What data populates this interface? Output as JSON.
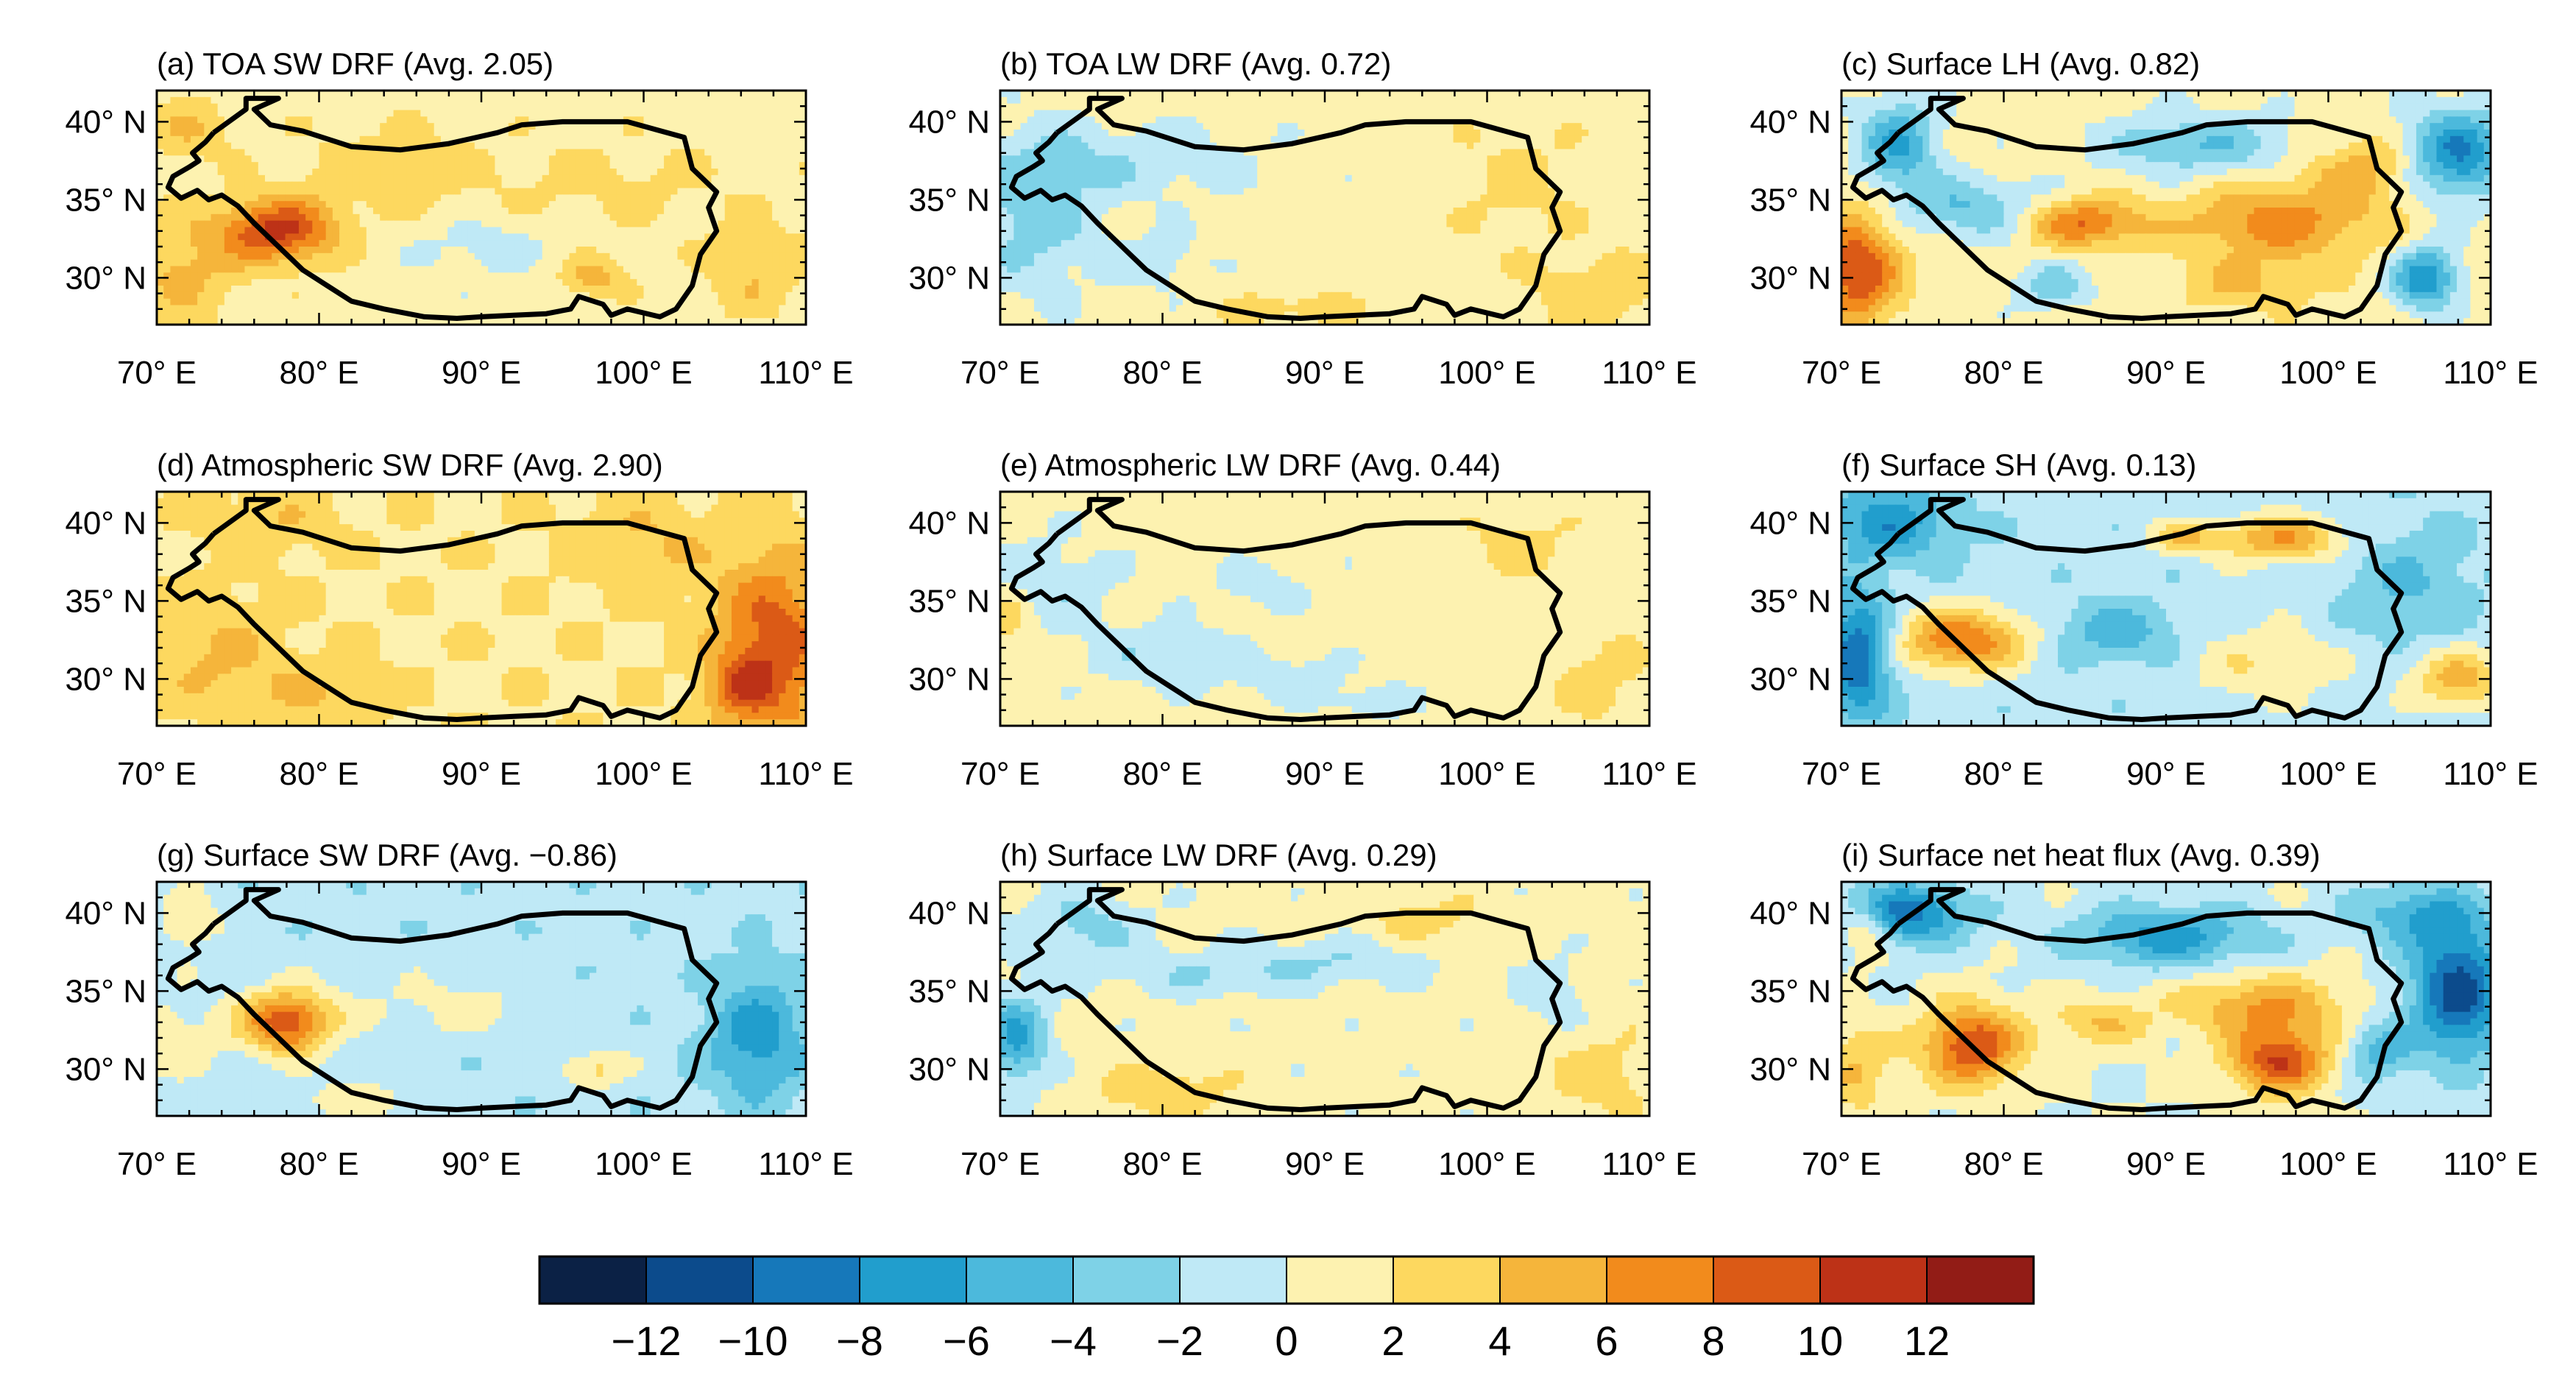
{
  "figure": {
    "lat_range": [
      27,
      42
    ],
    "lon_range": [
      70,
      110
    ],
    "lat_ticks": [
      30,
      35,
      40
    ],
    "lon_ticks": [
      70,
      80,
      90,
      100,
      110
    ],
    "lat_tick_labels": [
      "30° N",
      "35° N",
      "40° N"
    ],
    "lon_tick_labels": [
      "70° E",
      "80° E",
      "90° E",
      "100° E",
      "110° E"
    ]
  },
  "panels": [
    {
      "id": "a",
      "title": "(a) TOA SW DRF (Avg. 2.05)",
      "base": 1.0,
      "features": [
        [
          77.5,
          33.0,
          3.5,
          2.0,
          9.5
        ],
        [
          71.5,
          30.5,
          3.5,
          3.5,
          3.5
        ],
        [
          72.0,
          39.5,
          2.5,
          2.0,
          3.0
        ],
        [
          84.0,
          37.0,
          6.0,
          3.0,
          2.0
        ],
        [
          90.0,
          32.0,
          4.0,
          2.0,
          -2.0
        ],
        [
          97.0,
          30.0,
          2.0,
          1.2,
          4.0
        ],
        [
          98.0,
          36.0,
          8.0,
          3.0,
          1.5
        ],
        [
          107.0,
          30.5,
          3.0,
          3.0,
          3.0
        ]
      ]
    },
    {
      "id": "b",
      "title": "(b) TOA LW DRF (Avg. 0.72)",
      "base": 1.0,
      "features": [
        [
          72.0,
          34.0,
          4.0,
          5.0,
          -4.0
        ],
        [
          78.0,
          37.5,
          8.0,
          2.5,
          -2.5
        ],
        [
          80.0,
          31.0,
          3.0,
          2.0,
          -2.0
        ],
        [
          102.0,
          36.0,
          4.0,
          4.0,
          1.5
        ],
        [
          107.0,
          29.0,
          4.0,
          2.5,
          2.5
        ],
        [
          88.0,
          28.0,
          4.0,
          1.2,
          2.0
        ]
      ]
    },
    {
      "id": "c",
      "title": "(c) Surface LH (Avg. 0.82)",
      "base": 1.0,
      "features": [
        [
          71.0,
          30.5,
          2.5,
          3.5,
          9.0
        ],
        [
          73.5,
          38.5,
          2.5,
          3.0,
          -7.0
        ],
        [
          78.0,
          34.5,
          4.0,
          2.0,
          -5.0
        ],
        [
          85.0,
          33.5,
          3.5,
          1.5,
          7.0
        ],
        [
          97.0,
          33.5,
          6.0,
          2.5,
          6.0
        ],
        [
          92.0,
          38.5,
          6.0,
          2.0,
          -5.0
        ],
        [
          108.0,
          38.0,
          3.0,
          3.0,
          -9.0
        ],
        [
          106.0,
          30.0,
          2.0,
          2.0,
          -9.0
        ],
        [
          102.0,
          37.0,
          3.0,
          2.0,
          4.0
        ],
        [
          83.0,
          29.5,
          2.5,
          1.5,
          -4.0
        ],
        [
          95.0,
          29.5,
          4.0,
          1.5,
          3.0
        ]
      ]
    },
    {
      "id": "d",
      "title": "(d) Atmospheric SW DRF (Avg. 2.90)",
      "base": 1.8,
      "features": [
        [
          108.0,
          32.0,
          3.5,
          6.0,
          7.5
        ],
        [
          106.0,
          29.5,
          2.0,
          2.0,
          4.0
        ],
        [
          74.0,
          31.5,
          4.0,
          4.0,
          2.5
        ],
        [
          80.0,
          29.0,
          4.0,
          2.0,
          2.0
        ],
        [
          100.0,
          38.5,
          4.0,
          3.0,
          2.5
        ],
        [
          77.0,
          40.0,
          4.0,
          2.0,
          2.0
        ]
      ]
    },
    {
      "id": "e",
      "title": "(e) Atmospheric LW DRF (Avg. 0.44)",
      "base": 0.9,
      "features": [
        [
          73.0,
          36.0,
          4.0,
          3.0,
          -2.5
        ],
        [
          80.0,
          31.5,
          5.0,
          2.0,
          -2.5
        ],
        [
          88.0,
          30.0,
          4.0,
          1.5,
          -2.0
        ],
        [
          93.0,
          28.5,
          3.0,
          1.0,
          -2.0
        ],
        [
          86.0,
          36.0,
          3.0,
          1.5,
          -2.0
        ],
        [
          107.0,
          30.0,
          3.0,
          3.0,
          2.0
        ],
        [
          70.5,
          34.0,
          1.5,
          2.0,
          2.5
        ],
        [
          102.0,
          38.5,
          3.0,
          2.0,
          2.0
        ]
      ]
    },
    {
      "id": "f",
      "title": "(f) Surface SH (Avg. 0.13)",
      "base": -1.2,
      "features": [
        [
          71.0,
          31.5,
          2.0,
          4.0,
          -9.0
        ],
        [
          77.5,
          32.5,
          4.0,
          2.0,
          9.0
        ],
        [
          73.0,
          40.0,
          4.0,
          2.5,
          -6.0
        ],
        [
          97.0,
          39.0,
          4.0,
          1.5,
          7.0
        ],
        [
          91.0,
          39.0,
          2.0,
          1.0,
          5.0
        ],
        [
          87.0,
          33.0,
          4.0,
          2.0,
          -4.0
        ],
        [
          108.0,
          30.0,
          3.0,
          2.0,
          6.0
        ],
        [
          96.0,
          31.0,
          5.0,
          2.5,
          3.0
        ],
        [
          105.0,
          36.0,
          4.0,
          4.0,
          -3.0
        ]
      ]
    },
    {
      "id": "g",
      "title": "(g) Surface SW DRF (Avg. −0.86)",
      "base": -1.3,
      "features": [
        [
          78.0,
          33.0,
          2.8,
          2.0,
          11.0
        ],
        [
          72.0,
          39.5,
          2.0,
          2.0,
          3.0
        ],
        [
          107.0,
          32.0,
          3.0,
          4.0,
          -6.0
        ],
        [
          97.0,
          30.0,
          2.0,
          1.2,
          4.0
        ],
        [
          88.0,
          34.0,
          6.0,
          2.0,
          2.0
        ],
        [
          71.0,
          32.0,
          3.0,
          3.0,
          2.5
        ],
        [
          82.0,
          28.0,
          4.0,
          1.2,
          2.5
        ]
      ]
    },
    {
      "id": "h",
      "title": "(h) Surface LW DRF (Avg. 0.29)",
      "base": 0.8,
      "features": [
        [
          71.0,
          32.0,
          2.0,
          3.0,
          -7.0
        ],
        [
          75.0,
          39.0,
          4.0,
          2.5,
          -3.5
        ],
        [
          83.0,
          36.0,
          6.0,
          1.5,
          -2.5
        ],
        [
          91.0,
          37.0,
          6.0,
          1.5,
          -2.5
        ],
        [
          80.0,
          28.5,
          4.0,
          1.5,
          3.0
        ],
        [
          107.0,
          29.5,
          3.0,
          2.5,
          2.5
        ],
        [
          104.0,
          35.0,
          2.0,
          2.0,
          -2.5
        ],
        [
          96.0,
          39.5,
          4.0,
          1.5,
          2.0
        ]
      ]
    },
    {
      "id": "i",
      "title": "(i) Surface net heat flux (Avg. 0.39)",
      "base": 0.0,
      "features": [
        [
          78.0,
          31.5,
          3.0,
          2.5,
          10.0
        ],
        [
          97.0,
          30.5,
          3.0,
          2.0,
          10.0
        ],
        [
          96.0,
          34.0,
          5.0,
          2.0,
          6.0
        ],
        [
          108.0,
          35.0,
          3.0,
          4.5,
          -11.0
        ],
        [
          74.0,
          40.0,
          4.0,
          2.0,
          -9.0
        ],
        [
          90.0,
          38.5,
          6.0,
          2.0,
          -7.0
        ],
        [
          71.0,
          30.0,
          2.0,
          3.0,
          4.0
        ],
        [
          86.0,
          33.0,
          3.0,
          1.5,
          4.0
        ],
        [
          103.0,
          31.0,
          2.0,
          2.0,
          -5.0
        ],
        [
          105.0,
          40.0,
          4.0,
          2.0,
          -5.0
        ],
        [
          71.5,
          39.0,
          1.5,
          1.5,
          5.0
        ]
      ]
    }
  ],
  "colorbar": {
    "levels": [
      -12,
      -10,
      -8,
      -6,
      -4,
      -2,
      0,
      2,
      4,
      6,
      8,
      10,
      12
    ],
    "tick_labels": [
      "−12",
      "−10",
      "−8",
      "−6",
      "−4",
      "−2",
      "0",
      "2",
      "4",
      "6",
      "8",
      "10",
      "12"
    ],
    "colors": [
      "#0b2145",
      "#0c4b8c",
      "#1678ba",
      "#219ecd",
      "#4cb9dc",
      "#7ed2e7",
      "#bfe9f6",
      "#fdf2b0",
      "#fdd85f",
      "#f5b53b",
      "#f28b1c",
      "#db5a16",
      "#bd3217",
      "#921c16"
    ]
  },
  "plateau_outline_lonlat": [
    [
      73.5,
      39.3
    ],
    [
      75.5,
      40.8
    ],
    [
      75.5,
      41.5
    ],
    [
      77.5,
      41.5
    ],
    [
      76.0,
      40.8
    ],
    [
      77.0,
      39.8
    ],
    [
      79.0,
      39.4
    ],
    [
      82.0,
      38.4
    ],
    [
      85.0,
      38.2
    ],
    [
      88.0,
      38.6
    ],
    [
      91.0,
      39.3
    ],
    [
      92.5,
      39.8
    ],
    [
      95.0,
      40.0
    ],
    [
      99.0,
      40.0
    ],
    [
      102.5,
      39.0
    ],
    [
      103.0,
      37.0
    ],
    [
      104.5,
      35.5
    ],
    [
      104.0,
      34.5
    ],
    [
      104.5,
      33.0
    ],
    [
      103.5,
      31.5
    ],
    [
      103.0,
      29.5
    ],
    [
      102.0,
      28.0
    ],
    [
      101.0,
      27.5
    ],
    [
      99.0,
      28.0
    ],
    [
      98.0,
      27.6
    ],
    [
      97.5,
      28.3
    ],
    [
      96.0,
      28.8
    ],
    [
      95.5,
      28.0
    ],
    [
      94.0,
      27.7
    ],
    [
      92.0,
      27.6
    ],
    [
      90.0,
      27.5
    ],
    [
      88.5,
      27.4
    ],
    [
      86.5,
      27.5
    ],
    [
      84.0,
      28.0
    ],
    [
      82.0,
      28.5
    ],
    [
      80.5,
      29.5
    ],
    [
      79.0,
      30.5
    ],
    [
      77.5,
      32.0
    ],
    [
      76.0,
      33.5
    ],
    [
      75.0,
      34.6
    ],
    [
      74.0,
      35.3
    ],
    [
      73.2,
      35.0
    ],
    [
      72.5,
      35.6
    ],
    [
      71.5,
      35.1
    ],
    [
      70.7,
      35.8
    ],
    [
      71.0,
      36.5
    ],
    [
      72.0,
      37.1
    ],
    [
      72.6,
      37.5
    ],
    [
      72.2,
      38.0
    ],
    [
      73.0,
      38.7
    ],
    [
      73.5,
      39.3
    ]
  ]
}
